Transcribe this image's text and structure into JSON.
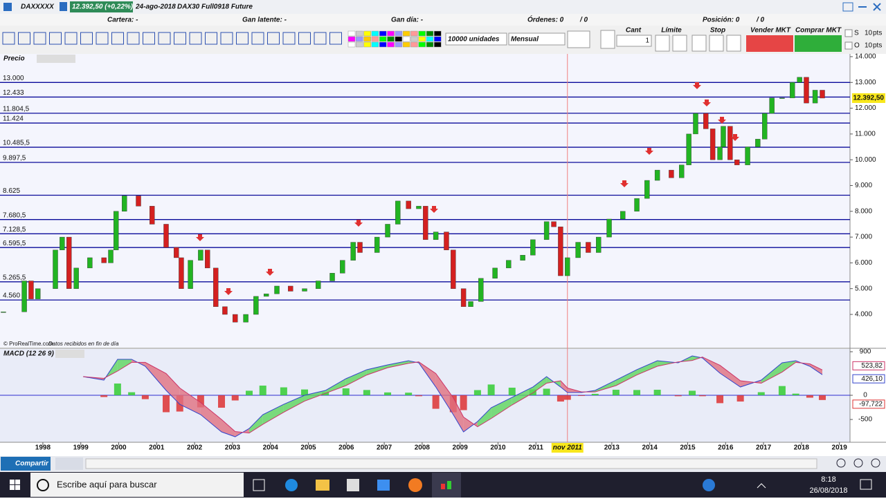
{
  "window": {
    "title": "DAXXXXX",
    "price_change": "12.392,50 (+0,22%)",
    "date": "24-ago-2018",
    "instrument": "DAX30 Full0918 Future"
  },
  "account": {
    "portfolio": "Cartera: -",
    "unrealized": "Gan latente: -",
    "daily_gain": "Gan día: -",
    "orders": "Órdenes: 0",
    "orders_total": "/ 0",
    "position": "Posición: 0",
    "position_total": "/ 0"
  },
  "toolbar": {
    "units": "10000 unidades",
    "period": "Mensual",
    "quantity_label": "Cant",
    "quantity": "1",
    "limit": "Límite",
    "stop": "Stop",
    "sell": "Vender MKT",
    "buy": "Comprar MKT",
    "s_label": "S",
    "s_points": "10",
    "o_label": "O",
    "o_points": "10",
    "points_unit": "pts"
  },
  "chart_data": [
    {
      "type": "candlestick",
      "title": "Precio",
      "credit": "© ProRealTime.com",
      "note": "Datos recibidos en fin de día",
      "x": [
        1996.96,
        1997.51,
        1997.69,
        1997.87,
        1998.33,
        1998.51,
        1998.69,
        1998.88,
        1999.24,
        1999.61,
        1999.79,
        1999.93,
        2000.15,
        2000.52,
        2000.88,
        2001.25,
        2001.52,
        2001.65,
        2001.89,
        2002.16,
        2002.34,
        2002.56,
        2002.8,
        2003.07,
        2003.35,
        2003.62,
        2003.89,
        2004.17,
        2004.53,
        2004.9,
        2005.26,
        2005.63,
        2005.9,
        2006.18,
        2006.36,
        2006.81,
        2007.09,
        2007.36,
        2007.64,
        2007.91,
        2008.09,
        2008.36,
        2008.64,
        2008.82,
        2009.09,
        2009.28,
        2009.55,
        2009.92,
        2010.28,
        2010.65,
        2010.92,
        2011.28,
        2011.47,
        2011.65,
        2011.83,
        2012.11,
        2012.38,
        2012.65,
        2012.93,
        2013.29,
        2013.66,
        2013.93,
        2014.2,
        2014.57,
        2014.84,
        2015.03,
        2015.21,
        2015.48,
        2015.66,
        2015.85,
        2015.94,
        2016.12,
        2016.3,
        2016.58,
        2016.85,
        2017.03,
        2017.22,
        2017.49,
        2017.76,
        2017.95,
        2018.13,
        2018.36,
        2018.55
      ],
      "values": [
        4100,
        5300,
        4600,
        5000,
        6500,
        7000,
        5000,
        5800,
        6200,
        6000,
        6500,
        8000,
        8600,
        8200,
        7500,
        6600,
        6200,
        5000,
        6100,
        6500,
        5800,
        4300,
        4000,
        3700,
        4000,
        4700,
        4800,
        5100,
        4900,
        5000,
        5300,
        5600,
        6100,
        6800,
        6400,
        7000,
        7500,
        8400,
        8100,
        8200,
        6900,
        7200,
        6500,
        5000,
        4300,
        4500,
        5400,
        5800,
        6100,
        6300,
        6900,
        7600,
        7400,
        5500,
        6200,
        6800,
        6400,
        7000,
        7700,
        8000,
        8500,
        9200,
        9600,
        9300,
        9800,
        11000,
        11800,
        11200,
        10000,
        10500,
        11300,
        10000,
        9800,
        10500,
        10800,
        11800,
        12400,
        12400,
        13000,
        13200,
        12200,
        12700,
        12392.5
      ],
      "xlim": [
        1996.87,
        2019.28
      ],
      "xticks": [
        1998,
        1999,
        2000,
        2001,
        2002,
        2003,
        2004,
        2005,
        2006,
        2007,
        2008,
        2009,
        2010,
        2011,
        2013,
        2014,
        2015,
        2016,
        2017,
        2018,
        2019
      ],
      "ylim": [
        2713,
        14107
      ],
      "yticks": [
        {
          "value": 4000,
          "label": "4.000"
        },
        {
          "value": 5000,
          "label": "5.000"
        },
        {
          "value": 6000,
          "label": "6.000"
        },
        {
          "value": 7000,
          "label": "7.000"
        },
        {
          "value": 8000,
          "label": "8.000"
        },
        {
          "value": 9000,
          "label": "9.000"
        },
        {
          "value": 10000,
          "label": "10.000"
        },
        {
          "value": 11000,
          "label": "11.000"
        },
        {
          "value": 12000,
          "label": "12.000"
        },
        {
          "value": 13000,
          "label": "13.000"
        },
        {
          "value": 14000,
          "label": "14.000"
        }
      ],
      "levels": [
        {
          "value": 13000,
          "label": "13.000"
        },
        {
          "value": 12433,
          "label": "12.433"
        },
        {
          "value": 11804.5,
          "label": "11.804,5"
        },
        {
          "value": 11424,
          "label": "11.424"
        },
        {
          "value": 10485.5,
          "label": "10.485,5"
        },
        {
          "value": 9897.5,
          "label": "9.897,5"
        },
        {
          "value": 8625,
          "label": "8.625"
        },
        {
          "value": 7680.5,
          "label": "7.680,5"
        },
        {
          "value": 7128.5,
          "label": "7.128,5"
        },
        {
          "value": 6595.5,
          "label": "6.595,5"
        },
        {
          "value": 5265.5,
          "label": "5.265,5"
        },
        {
          "value": 4560,
          "label": "4.560"
        }
      ],
      "level_color": "#0a0a9a",
      "up_color": "#22b422",
      "down_color": "#d42020",
      "last_price": {
        "value": 12392.5,
        "label": "12.392,50"
      },
      "cursor": {
        "value": 2011.83,
        "label": "nov 2011"
      }
    },
    {
      "type": "macd",
      "title": "MACD (12 26 9)",
      "x": [
        1999.06,
        1999.61,
        1999.97,
        2000.34,
        2000.7,
        2001.25,
        2001.61,
        2002.16,
        2002.71,
        2003.07,
        2003.44,
        2003.8,
        2004.35,
        2004.9,
        2005.45,
        2005.99,
        2006.54,
        2007.09,
        2007.64,
        2007.91,
        2008.36,
        2008.82,
        2009.09,
        2009.46,
        2009.82,
        2010.37,
        2010.92,
        2011.28,
        2011.65,
        2011.83,
        2012.2,
        2012.56,
        2013.11,
        2013.66,
        2014.2,
        2014.75,
        2015.12,
        2015.39,
        2015.85,
        2016.39,
        2016.94,
        2017.49,
        2017.85,
        2018.22,
        2018.55
      ],
      "series": [
        {
          "color": "#3344cc",
          "last_label": "426,10",
          "values": [
            386,
            314,
            743,
            743,
            600,
            100,
            -186,
            -400,
            -757,
            -857,
            -686,
            -400,
            -186,
            0,
            100,
            343,
            529,
            629,
            714,
            671,
            171,
            -400,
            -757,
            -543,
            -257,
            -43,
            171,
            386,
            171,
            57,
            57,
            100,
            314,
            529,
            714,
            671,
            814,
            771,
            457,
            171,
            314,
            671,
            714,
            600,
            426.1
          ]
        },
        {
          "color": "#cc3366",
          "last_label": "523,82",
          "values": [
            386,
            350,
            500,
            680,
            680,
            450,
            150,
            -150,
            -500,
            -750,
            -780,
            -600,
            -350,
            -120,
            40,
            200,
            420,
            570,
            660,
            690,
            450,
            -50,
            -450,
            -650,
            -480,
            -200,
            50,
            250,
            300,
            150,
            70,
            70,
            200,
            420,
            600,
            690,
            720,
            790,
            620,
            300,
            250,
            480,
            680,
            650,
            523.82
          ]
        }
      ],
      "histogram": {
        "up_color": "#33cc33",
        "down_color": "#dd3333",
        "last_label": "-97,722",
        "values": [
          0,
          -36,
          243,
          63,
          -80,
          -350,
          -336,
          -250,
          -257,
          -107,
          94,
          200,
          164,
          120,
          60,
          143,
          109,
          59,
          54,
          -19,
          -279,
          -350,
          -307,
          107,
          223,
          157,
          121,
          136,
          -129,
          -93,
          -13,
          30,
          114,
          109,
          114,
          -19,
          94,
          -19,
          -163,
          -129,
          64,
          191,
          34,
          -50,
          -97.722
        ]
      },
      "ylim": [
        -971,
        957
      ],
      "yticks": [
        900,
        0,
        -500
      ],
      "zero_color": "#2a2ad0"
    }
  ],
  "footer": {
    "share": "Compartir"
  },
  "taskbar": {
    "search": "Escribe aquí para buscar",
    "time": "8:18",
    "date": "26/08/2018"
  }
}
